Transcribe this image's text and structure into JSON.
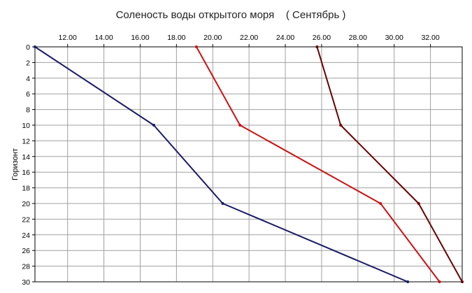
{
  "chart_data": {
    "type": "line",
    "title": "Соленость воды открытого моря    ( Сентябрь )",
    "xlabel": "",
    "ylabel": "Горизонт",
    "xlim": [
      10.2,
      33.75
    ],
    "ylim": [
      0,
      30
    ],
    "y_inverted": true,
    "x_axis_position": "top",
    "grid": true,
    "x_ticks": [
      "12.00",
      "14.00",
      "16.00",
      "18.00",
      "20.00",
      "22.00",
      "24.00",
      "26.00",
      "28.00",
      "30.00",
      "32.00"
    ],
    "x_tick_values": [
      12,
      14,
      16,
      18,
      20,
      22,
      24,
      26,
      28,
      30,
      32
    ],
    "y_ticks": [
      "0",
      "2",
      "4",
      "6",
      "8",
      "10",
      "12",
      "14",
      "16",
      "18",
      "20",
      "22",
      "24",
      "26",
      "28",
      "30"
    ],
    "y_tick_values": [
      0,
      2,
      4,
      6,
      8,
      10,
      12,
      14,
      16,
      18,
      20,
      22,
      24,
      26,
      28,
      30
    ],
    "series": [
      {
        "color": "#1a1a66",
        "points": [
          [
            10.2,
            0
          ],
          [
            16.75,
            10
          ],
          [
            20.55,
            20
          ],
          [
            30.75,
            30
          ]
        ]
      },
      {
        "color": "#cc1111",
        "points": [
          [
            19.1,
            0
          ],
          [
            21.5,
            10
          ],
          [
            29.25,
            20
          ],
          [
            32.5,
            30
          ]
        ]
      },
      {
        "color": "#660000",
        "points": [
          [
            25.75,
            0
          ],
          [
            27.05,
            10
          ],
          [
            31.35,
            20
          ],
          [
            33.75,
            30
          ]
        ]
      }
    ]
  }
}
